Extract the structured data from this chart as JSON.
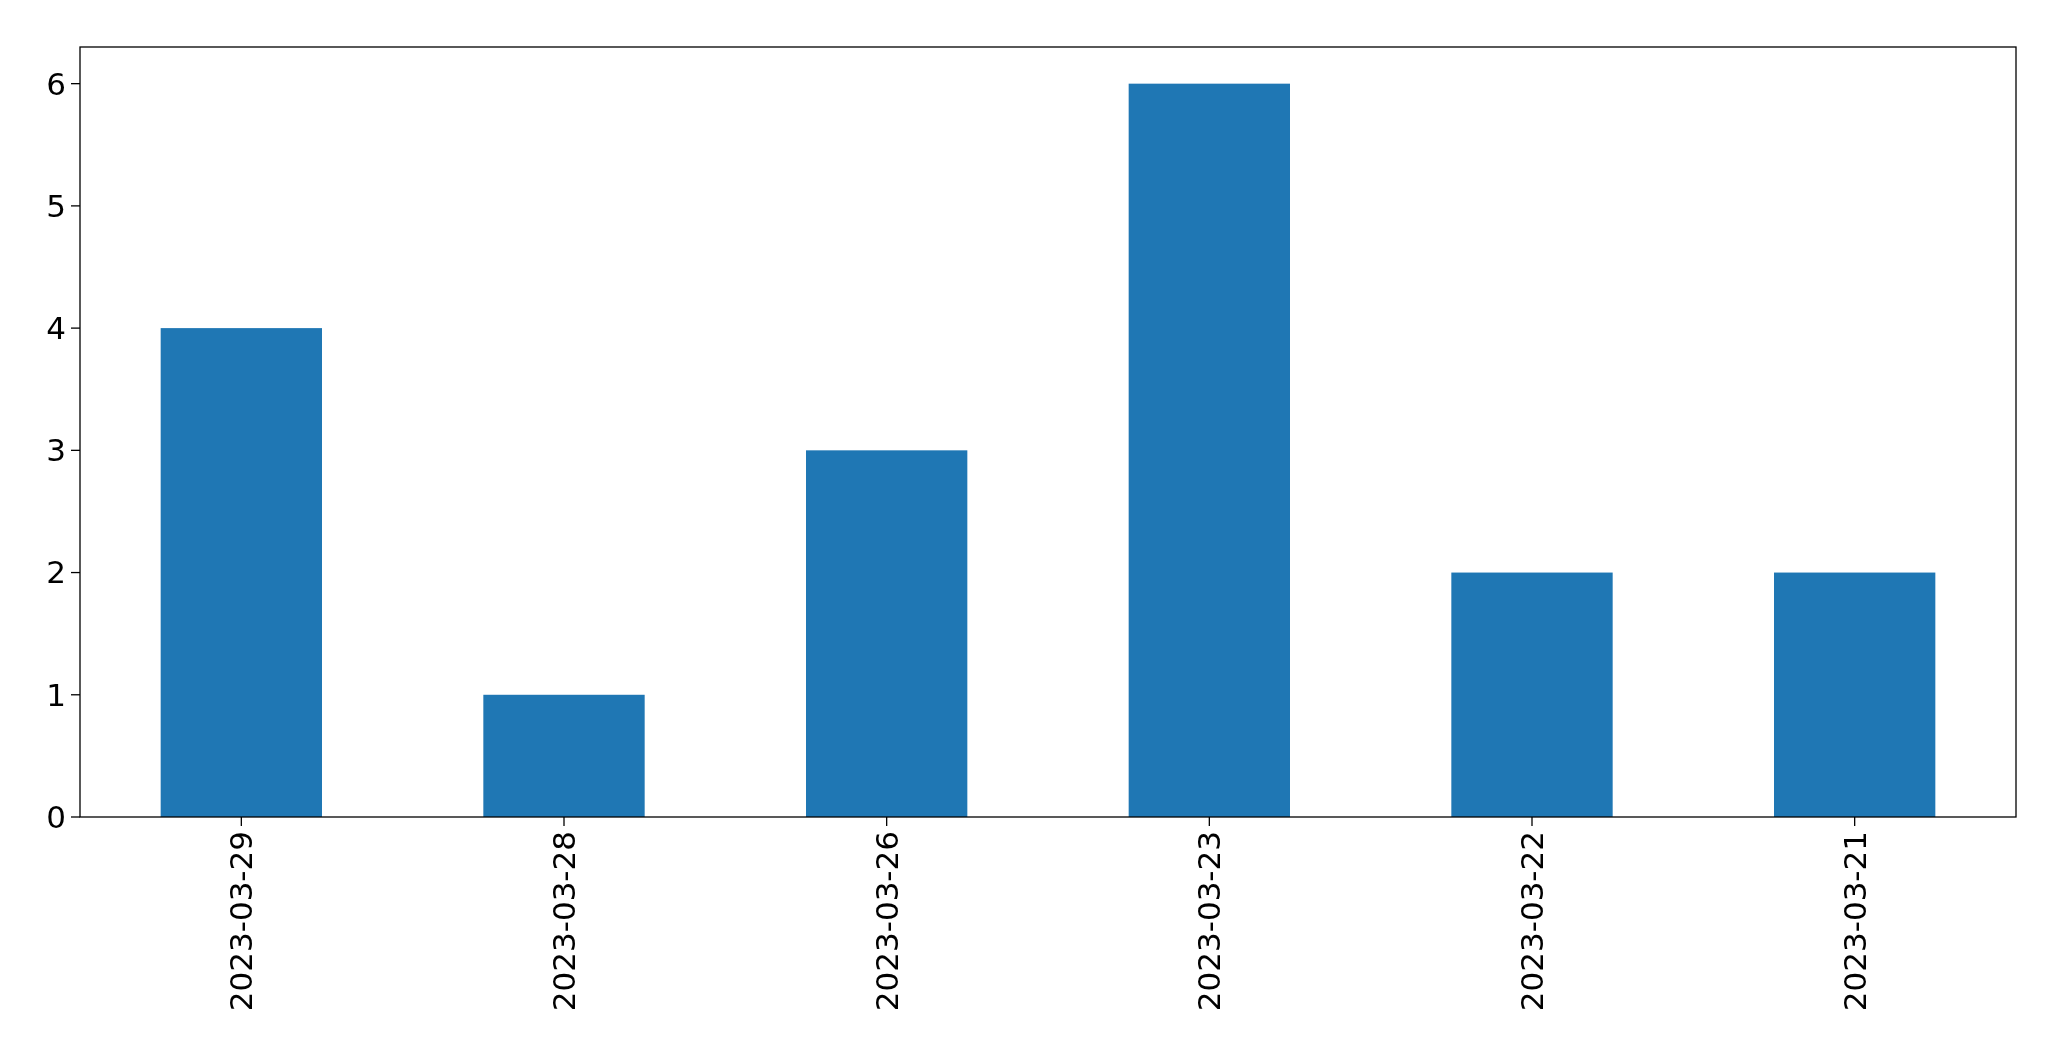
{
  "chart_data": {
    "type": "bar",
    "categories": [
      "2023-03-29",
      "2023-03-28",
      "2023-03-26",
      "2023-03-23",
      "2023-03-22",
      "2023-03-21"
    ],
    "values": [
      4,
      1,
      3,
      6,
      2,
      2
    ],
    "color": "#1f77b4",
    "ylim": [
      0,
      6.3
    ],
    "yticks": [
      0,
      1,
      2,
      3,
      4,
      5,
      6
    ],
    "grid": false
  }
}
